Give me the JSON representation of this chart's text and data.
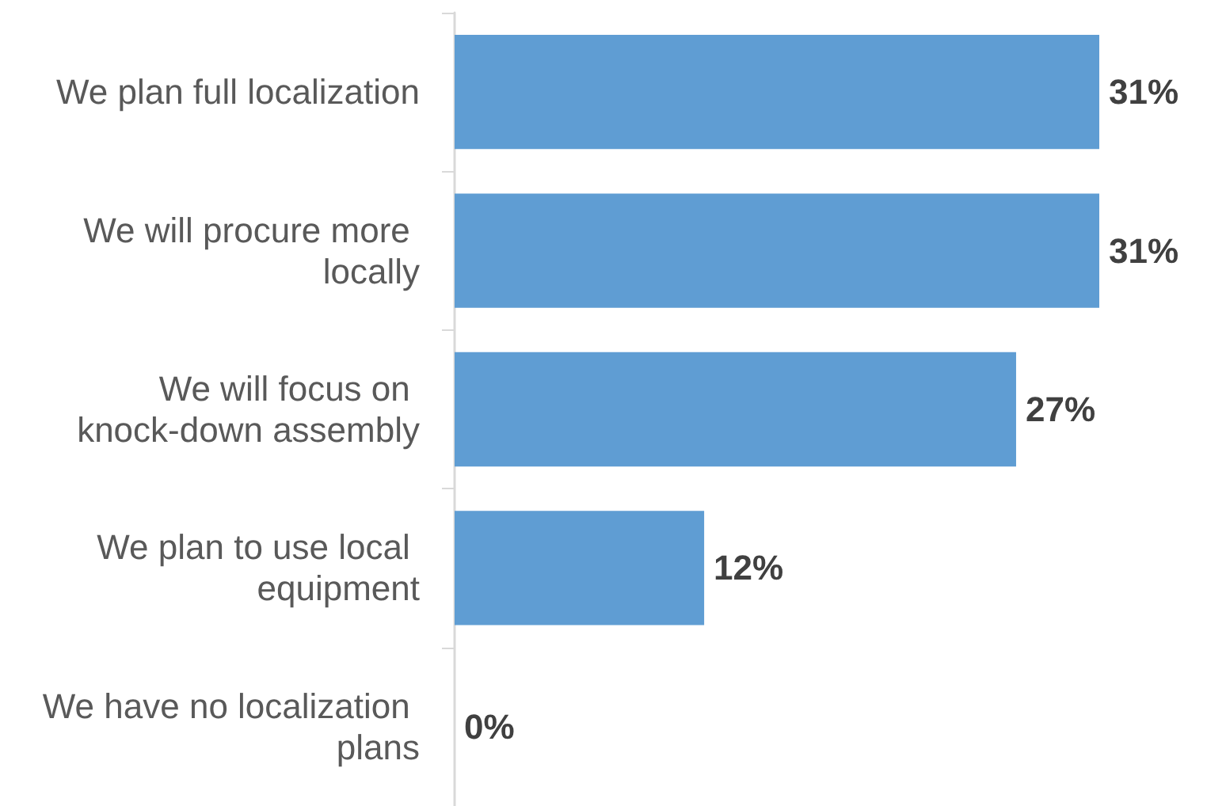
{
  "chart_data": {
    "type": "bar",
    "orientation": "horizontal",
    "categories": [
      "We plan full localization",
      "We will procure more locally",
      "We will focus on knock-down assembly",
      "We plan to use local equipment",
      "We have no localization plans"
    ],
    "values": [
      31,
      31,
      27,
      12,
      0
    ],
    "value_labels": [
      "31%",
      "31%",
      "27%",
      "12%",
      "0%"
    ],
    "color": "#5f9dd3",
    "tick_labels": "y"
  }
}
